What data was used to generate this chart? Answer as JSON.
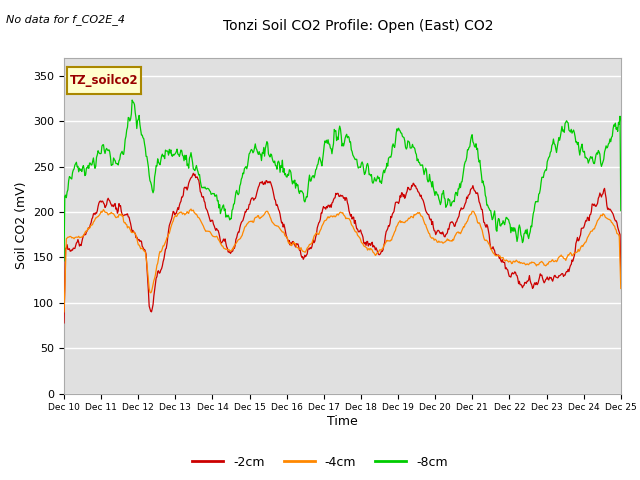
{
  "title": "Tonzi Soil CO2 Profile: Open (East) CO2",
  "no_data_label": "No data for f_CO2E_4",
  "inset_label": "TZ_soilco2",
  "ylabel": "Soil CO2 (mV)",
  "xlabel": "Time",
  "ylim": [
    0,
    370
  ],
  "yticks": [
    0,
    50,
    100,
    150,
    200,
    250,
    300,
    350
  ],
  "x_labels": [
    "Dec 10",
    "Dec 11",
    "Dec 12",
    "Dec 13",
    "Dec 14",
    "Dec 15",
    "Dec 16",
    "Dec 17",
    "Dec 18",
    "Dec 19",
    "Dec 20",
    "Dec 21",
    "Dec 22",
    "Dec 23",
    "Dec 24",
    "Dec 25"
  ],
  "colors": {
    "-2cm": "#cc0000",
    "-4cm": "#ff8800",
    "-8cm": "#00cc00"
  },
  "legend_labels": [
    "-2cm",
    "-4cm",
    "-8cm"
  ],
  "background_color": "#ffffff",
  "plot_bg_color": "#e0e0e0",
  "grid_color": "#ffffff",
  "inset_bg": "#ffffcc",
  "inset_border": "#aa8800"
}
